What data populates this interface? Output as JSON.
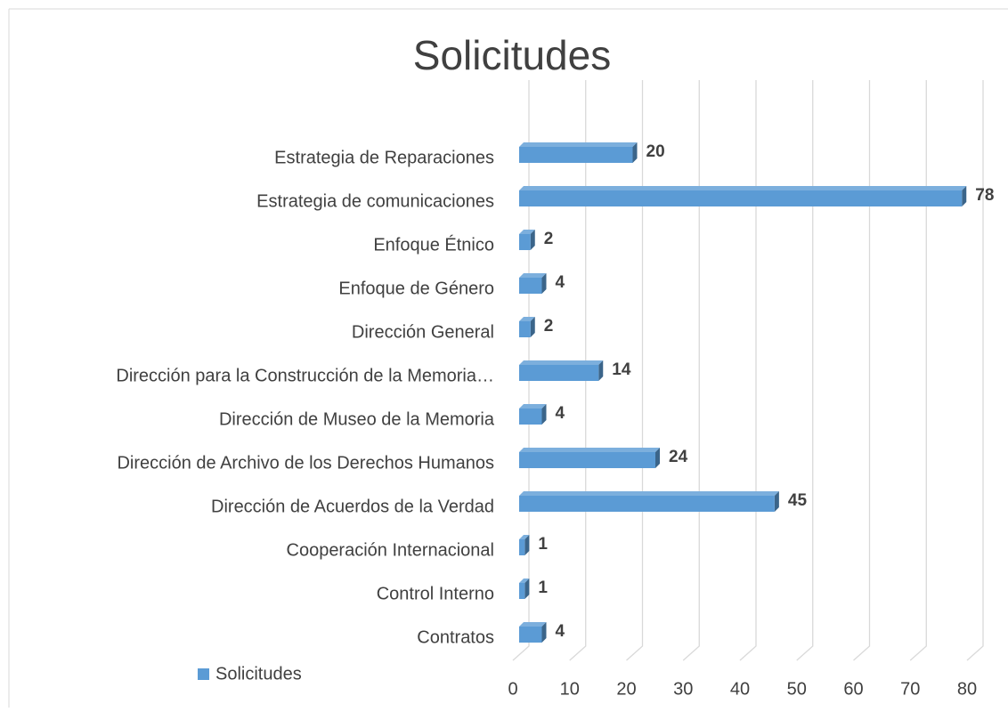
{
  "chart_data": {
    "type": "bar",
    "orientation": "horizontal",
    "title": "Solicitudes",
    "categories": [
      "Estrategia de Reparaciones",
      "Estrategia de comunicaciones",
      "Enfoque Étnico",
      "Enfoque de Género",
      "Dirección General",
      "Dirección para la Construcción de la Memoria…",
      "Dirección de Museo de la Memoria",
      "Dirección de Archivo de los Derechos Humanos",
      "Dirección de Acuerdos de la Verdad",
      "Cooperación Internacional",
      "Control Interno",
      "Contratos"
    ],
    "series": [
      {
        "name": "Solicitudes",
        "color": "#5b9bd5",
        "values": [
          20,
          78,
          2,
          4,
          2,
          14,
          4,
          24,
          45,
          1,
          1,
          4
        ]
      }
    ],
    "xlim": [
      0,
      80
    ],
    "xticks": [
      0,
      10,
      20,
      30,
      40,
      50,
      60,
      70,
      80
    ],
    "grid": true,
    "legend": "bottom-left"
  }
}
